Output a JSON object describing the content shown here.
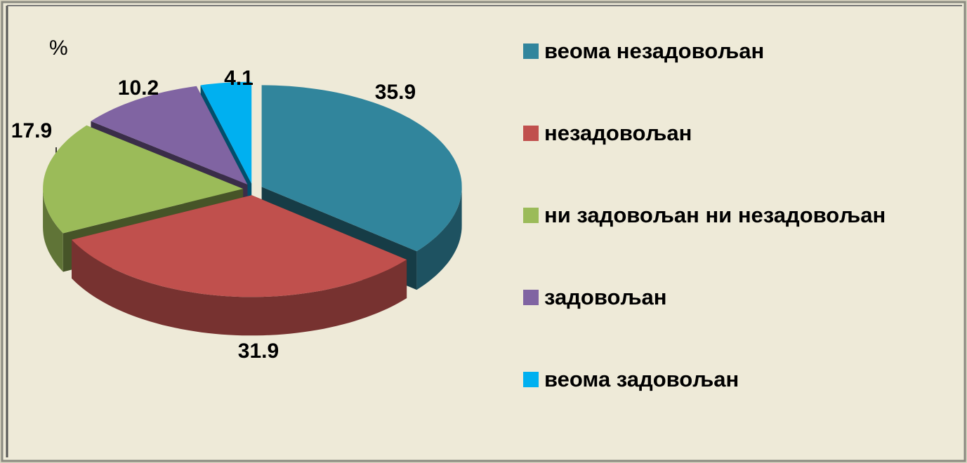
{
  "chart_data": {
    "type": "pie",
    "title": "%",
    "categories": [
      "веома незадовољан",
      "незадовољан",
      "ни задовољан  ни незадовољан",
      "задовољан",
      "веома задовољан"
    ],
    "values": [
      35.9,
      31.9,
      17.9,
      10.2,
      4.1
    ],
    "colors": [
      "#31859c",
      "#c0504d",
      "#9bbb59",
      "#8064a2",
      "#00b0f0"
    ],
    "legend": "right"
  }
}
